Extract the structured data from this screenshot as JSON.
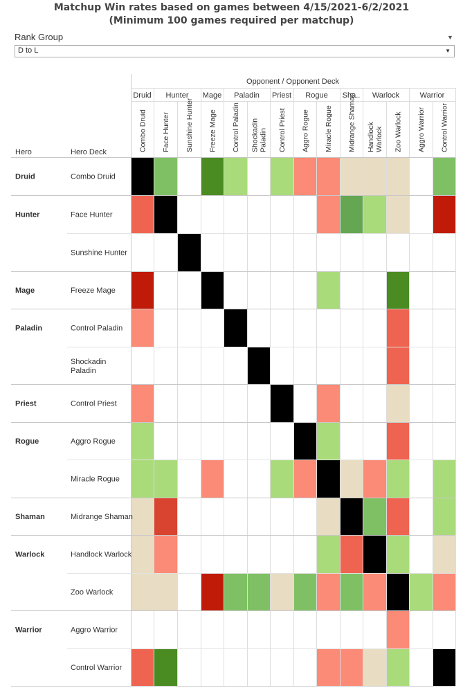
{
  "title_line1": "Matchup Win rates based on games between 4/15/2021-6/2/2021",
  "title_line2": "(Minimum 100 games required per matchup)",
  "filter": {
    "label": "Rank Group",
    "value": "D to L"
  },
  "colors": {
    "mirror": "#000000",
    "strong_win": "#4a8b22",
    "win": "#80c065",
    "slight_win": "#a9db7a",
    "even": "#e8dcc2",
    "slight_loss": "#fb8a76",
    "loss": "#ef6451",
    "strong_loss": "#c01a08",
    "dark_loss": "#d94430",
    "mid_green": "#64a652"
  },
  "chart_data": {
    "type": "heatmap",
    "column_header": "Opponent / Opponent Deck",
    "row_header_hero": "Hero",
    "row_header_deck": "Hero Deck",
    "column_groups": [
      {
        "hero": "Druid",
        "decks": [
          "Combo Druid"
        ]
      },
      {
        "hero": "Hunter",
        "decks": [
          "Face Hunter",
          "Sunshine Hunter"
        ]
      },
      {
        "hero": "Mage",
        "decks": [
          "Freeze Mage"
        ]
      },
      {
        "hero": "Paladin",
        "decks": [
          "Control Paladin",
          "Shockadin Paladin"
        ]
      },
      {
        "hero": "Priest",
        "decks": [
          "Control Priest"
        ]
      },
      {
        "hero": "Rogue",
        "decks": [
          "Aggro Rogue",
          "Miracle Rogue"
        ]
      },
      {
        "hero": "Sha..",
        "decks": [
          "Midrange Shaman"
        ]
      },
      {
        "hero": "Warlock",
        "decks": [
          "Handlock Warlock",
          "Zoo Warlock"
        ]
      },
      {
        "hero": "Warrior",
        "decks": [
          "Aggro Warrior",
          "Control Warrior"
        ]
      }
    ],
    "row_groups": [
      {
        "hero": "Druid",
        "decks": [
          "Combo Druid"
        ]
      },
      {
        "hero": "Hunter",
        "decks": [
          "Face Hunter",
          "Sunshine Hunter"
        ]
      },
      {
        "hero": "Mage",
        "decks": [
          "Freeze Mage"
        ]
      },
      {
        "hero": "Paladin",
        "decks": [
          "Control Paladin",
          "Shockadin Paladin"
        ]
      },
      {
        "hero": "Priest",
        "decks": [
          "Control Priest"
        ]
      },
      {
        "hero": "Rogue",
        "decks": [
          "Aggro Rogue",
          "Miracle Rogue"
        ]
      },
      {
        "hero": "Shaman",
        "decks": [
          "Midrange Shaman"
        ]
      },
      {
        "hero": "Warlock",
        "decks": [
          "Handlock Warlock",
          "Zoo Warlock"
        ]
      },
      {
        "hero": "Warrior",
        "decks": [
          "Aggro Warrior",
          "Control Warrior"
        ]
      }
    ],
    "legend": "none",
    "grid": true,
    "cell_color_keys": [
      [
        "mirror",
        "win",
        null,
        "strong_win",
        "slight_win",
        null,
        "slight_win",
        "slight_loss",
        "slight_loss",
        "even",
        "even",
        "even",
        null,
        "win"
      ],
      [
        "loss",
        "mirror",
        null,
        null,
        null,
        null,
        null,
        null,
        "slight_loss",
        "mid_green",
        "slight_win",
        "even",
        null,
        "strong_loss"
      ],
      [
        null,
        null,
        "mirror",
        null,
        null,
        null,
        null,
        null,
        null,
        null,
        null,
        null,
        null,
        null
      ],
      [
        "strong_loss",
        null,
        null,
        "mirror",
        null,
        null,
        null,
        null,
        "slight_win",
        null,
        null,
        "strong_win",
        null,
        null
      ],
      [
        "slight_loss",
        null,
        null,
        null,
        "mirror",
        null,
        null,
        null,
        null,
        null,
        null,
        "loss",
        null,
        null
      ],
      [
        null,
        null,
        null,
        null,
        null,
        "mirror",
        null,
        null,
        null,
        null,
        null,
        "loss",
        null,
        null
      ],
      [
        "slight_loss",
        null,
        null,
        null,
        null,
        null,
        "mirror",
        null,
        "slight_loss",
        null,
        null,
        "even",
        null,
        null
      ],
      [
        "slight_win",
        null,
        null,
        null,
        null,
        null,
        null,
        "mirror",
        "slight_win",
        null,
        null,
        "loss",
        null,
        null
      ],
      [
        "slight_win",
        "slight_win",
        null,
        "slight_loss",
        null,
        null,
        "slight_win",
        "slight_loss",
        "mirror",
        "even",
        "slight_loss",
        "slight_win",
        null,
        "slight_win"
      ],
      [
        "even",
        "dark_loss",
        null,
        null,
        null,
        null,
        null,
        null,
        "even",
        "mirror",
        "win",
        "loss",
        null,
        "slight_win"
      ],
      [
        "even",
        "slight_loss",
        null,
        null,
        null,
        null,
        null,
        null,
        "slight_win",
        "loss",
        "mirror",
        "slight_win",
        null,
        "even"
      ],
      [
        "even",
        "even",
        null,
        "strong_loss",
        "win",
        "win",
        "even",
        "win",
        "slight_loss",
        "win",
        "slight_loss",
        "mirror",
        "slight_win",
        "slight_loss"
      ],
      [
        null,
        null,
        null,
        null,
        null,
        null,
        null,
        null,
        null,
        null,
        null,
        "slight_loss",
        null,
        null
      ],
      [
        "loss",
        "strong_win",
        null,
        null,
        null,
        null,
        null,
        null,
        "slight_loss",
        "slight_loss",
        "even",
        "slight_win",
        null,
        "mirror"
      ]
    ]
  }
}
